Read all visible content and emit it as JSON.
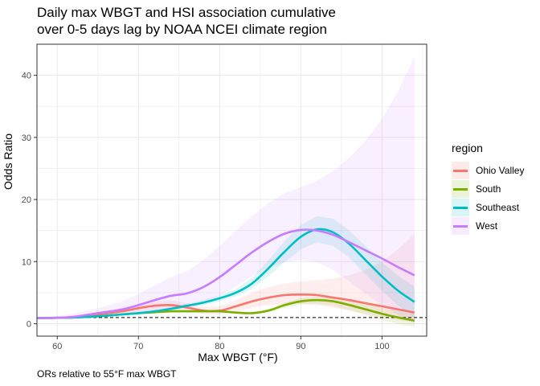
{
  "chart_data": {
    "type": "line",
    "title_lines": [
      "Daily max WBGT and HSI association cumulative",
      "over 0-5 days lag by NOAA NCEI climate region"
    ],
    "xlabel": "Max WBGT (°F)",
    "ylabel": "Odds Ratio",
    "caption": "ORs relative to 55°F max WBGT",
    "xlim": [
      57.5,
      105.5
    ],
    "ylim": [
      -2,
      45
    ],
    "x_ticks": [
      60,
      70,
      80,
      90,
      100
    ],
    "y_ticks": [
      0,
      10,
      20,
      30,
      40
    ],
    "reference_line": {
      "y": 1,
      "style": "dashed"
    },
    "grid": true,
    "legend": {
      "title": "region",
      "position": "right"
    },
    "series": [
      {
        "name": "Ohio Valley",
        "color": "#F8766D",
        "points": [
          [
            57.5,
            0.9
          ],
          [
            60,
            0.95
          ],
          [
            62,
            1.1
          ],
          [
            65,
            1.5
          ],
          [
            68,
            2.0
          ],
          [
            70,
            2.5
          ],
          [
            72,
            2.9
          ],
          [
            74,
            3.0
          ],
          [
            76,
            2.6
          ],
          [
            78,
            2.1
          ],
          [
            80,
            2.1
          ],
          [
            82,
            2.8
          ],
          [
            84,
            3.6
          ],
          [
            86,
            4.2
          ],
          [
            88,
            4.6
          ],
          [
            90,
            4.7
          ],
          [
            92,
            4.6
          ],
          [
            94,
            4.2
          ],
          [
            96,
            3.8
          ],
          [
            98,
            3.3
          ],
          [
            100,
            2.8
          ],
          [
            102,
            2.3
          ],
          [
            104,
            1.8
          ]
        ],
        "upper": [
          [
            57.5,
            1.0
          ],
          [
            60,
            1.05
          ],
          [
            62,
            1.3
          ],
          [
            65,
            1.9
          ],
          [
            68,
            2.5
          ],
          [
            70,
            3.1
          ],
          [
            72,
            3.6
          ],
          [
            74,
            3.8
          ],
          [
            76,
            3.3
          ],
          [
            78,
            2.7
          ],
          [
            80,
            2.8
          ],
          [
            82,
            3.8
          ],
          [
            84,
            5.0
          ],
          [
            86,
            5.9
          ],
          [
            88,
            6.5
          ],
          [
            90,
            6.8
          ],
          [
            92,
            7.0
          ],
          [
            94,
            7.3
          ],
          [
            96,
            7.8
          ],
          [
            98,
            8.7
          ],
          [
            100,
            10.0
          ],
          [
            102,
            12.0
          ],
          [
            104,
            14.5
          ]
        ],
        "lower": [
          [
            57.5,
            0.8
          ],
          [
            60,
            0.85
          ],
          [
            62,
            0.9
          ],
          [
            65,
            1.1
          ],
          [
            68,
            1.5
          ],
          [
            70,
            1.9
          ],
          [
            72,
            2.2
          ],
          [
            74,
            2.3
          ],
          [
            76,
            2.0
          ],
          [
            78,
            1.6
          ],
          [
            80,
            1.5
          ],
          [
            82,
            2.0
          ],
          [
            84,
            2.6
          ],
          [
            86,
            3.0
          ],
          [
            88,
            3.2
          ],
          [
            90,
            3.2
          ],
          [
            92,
            3.0
          ],
          [
            94,
            2.6
          ],
          [
            96,
            2.1
          ],
          [
            98,
            1.6
          ],
          [
            100,
            1.1
          ],
          [
            102,
            0.6
          ],
          [
            104,
            0.2
          ]
        ]
      },
      {
        "name": "South",
        "color": "#7CAE00",
        "points": [
          [
            57.5,
            0.9
          ],
          [
            60,
            0.95
          ],
          [
            62,
            1.0
          ],
          [
            65,
            1.2
          ],
          [
            68,
            1.5
          ],
          [
            70,
            1.7
          ],
          [
            72,
            1.85
          ],
          [
            74,
            2.0
          ],
          [
            76,
            2.0
          ],
          [
            78,
            2.0
          ],
          [
            80,
            2.0
          ],
          [
            82,
            1.8
          ],
          [
            84,
            1.7
          ],
          [
            86,
            2.1
          ],
          [
            88,
            3.0
          ],
          [
            90,
            3.6
          ],
          [
            92,
            3.8
          ],
          [
            94,
            3.6
          ],
          [
            96,
            3.0
          ],
          [
            98,
            2.3
          ],
          [
            100,
            1.6
          ],
          [
            102,
            1.0
          ],
          [
            104,
            0.5
          ]
        ],
        "upper": [
          [
            57.5,
            1.0
          ],
          [
            60,
            1.0
          ],
          [
            62,
            1.1
          ],
          [
            65,
            1.3
          ],
          [
            68,
            1.6
          ],
          [
            70,
            1.85
          ],
          [
            72,
            2.0
          ],
          [
            74,
            2.2
          ],
          [
            76,
            2.2
          ],
          [
            78,
            2.2
          ],
          [
            80,
            2.2
          ],
          [
            82,
            2.0
          ],
          [
            84,
            1.9
          ],
          [
            86,
            2.4
          ],
          [
            88,
            3.4
          ],
          [
            90,
            4.1
          ],
          [
            92,
            4.4
          ],
          [
            94,
            4.3
          ],
          [
            96,
            3.8
          ],
          [
            98,
            3.2
          ],
          [
            100,
            2.6
          ],
          [
            102,
            2.0
          ],
          [
            104,
            1.5
          ]
        ],
        "lower": [
          [
            57.5,
            0.8
          ],
          [
            60,
            0.9
          ],
          [
            62,
            0.95
          ],
          [
            65,
            1.1
          ],
          [
            68,
            1.4
          ],
          [
            70,
            1.55
          ],
          [
            72,
            1.7
          ],
          [
            74,
            1.8
          ],
          [
            76,
            1.8
          ],
          [
            78,
            1.8
          ],
          [
            80,
            1.8
          ],
          [
            82,
            1.6
          ],
          [
            84,
            1.5
          ],
          [
            86,
            1.8
          ],
          [
            88,
            2.6
          ],
          [
            90,
            3.1
          ],
          [
            92,
            3.2
          ],
          [
            94,
            2.9
          ],
          [
            96,
            2.2
          ],
          [
            98,
            1.4
          ],
          [
            100,
            0.6
          ],
          [
            102,
            0.0
          ],
          [
            104,
            -0.5
          ]
        ]
      },
      {
        "name": "Southeast",
        "color": "#00BFC4",
        "points": [
          [
            57.5,
            0.9
          ],
          [
            60,
            0.95
          ],
          [
            62,
            1.0
          ],
          [
            65,
            1.2
          ],
          [
            68,
            1.5
          ],
          [
            70,
            1.7
          ],
          [
            72,
            2.0
          ],
          [
            74,
            2.4
          ],
          [
            76,
            2.9
          ],
          [
            78,
            3.4
          ],
          [
            80,
            4.1
          ],
          [
            82,
            5.0
          ],
          [
            84,
            6.5
          ],
          [
            86,
            8.9
          ],
          [
            88,
            11.6
          ],
          [
            90,
            14.0
          ],
          [
            92,
            15.2
          ],
          [
            94,
            14.7
          ],
          [
            96,
            12.8
          ],
          [
            98,
            10.2
          ],
          [
            100,
            7.6
          ],
          [
            102,
            5.3
          ],
          [
            104,
            3.5
          ]
        ],
        "upper": [
          [
            57.5,
            1.0
          ],
          [
            60,
            1.0
          ],
          [
            62,
            1.1
          ],
          [
            65,
            1.3
          ],
          [
            68,
            1.6
          ],
          [
            70,
            1.85
          ],
          [
            72,
            2.2
          ],
          [
            74,
            2.7
          ],
          [
            76,
            3.2
          ],
          [
            78,
            3.8
          ],
          [
            80,
            4.6
          ],
          [
            82,
            5.6
          ],
          [
            84,
            7.4
          ],
          [
            86,
            10.2
          ],
          [
            88,
            13.3
          ],
          [
            90,
            15.9
          ],
          [
            92,
            17.3
          ],
          [
            94,
            16.9
          ],
          [
            96,
            15.0
          ],
          [
            98,
            12.5
          ],
          [
            100,
            9.9
          ],
          [
            102,
            7.7
          ],
          [
            104,
            6.0
          ]
        ],
        "lower": [
          [
            57.5,
            0.8
          ],
          [
            60,
            0.9
          ],
          [
            62,
            0.95
          ],
          [
            65,
            1.1
          ],
          [
            68,
            1.4
          ],
          [
            70,
            1.55
          ],
          [
            72,
            1.8
          ],
          [
            74,
            2.1
          ],
          [
            76,
            2.6
          ],
          [
            78,
            3.0
          ],
          [
            80,
            3.6
          ],
          [
            82,
            4.4
          ],
          [
            84,
            5.6
          ],
          [
            86,
            7.6
          ],
          [
            88,
            9.9
          ],
          [
            90,
            12.0
          ],
          [
            92,
            13.1
          ],
          [
            94,
            12.5
          ],
          [
            96,
            10.6
          ],
          [
            98,
            7.9
          ],
          [
            100,
            5.3
          ],
          [
            102,
            2.9
          ],
          [
            104,
            1.0
          ]
        ]
      },
      {
        "name": "West",
        "color": "#C77CFF",
        "points": [
          [
            57.5,
            0.9
          ],
          [
            60,
            0.95
          ],
          [
            62,
            1.1
          ],
          [
            65,
            1.7
          ],
          [
            68,
            2.3
          ],
          [
            70,
            3.0
          ],
          [
            72,
            3.8
          ],
          [
            74,
            4.5
          ],
          [
            76,
            4.9
          ],
          [
            78,
            5.9
          ],
          [
            80,
            7.5
          ],
          [
            82,
            9.5
          ],
          [
            84,
            11.5
          ],
          [
            86,
            13.2
          ],
          [
            88,
            14.5
          ],
          [
            90,
            15.1
          ],
          [
            92,
            15.0
          ],
          [
            94,
            14.3
          ],
          [
            96,
            13.1
          ],
          [
            98,
            11.8
          ],
          [
            100,
            10.5
          ],
          [
            102,
            9.1
          ],
          [
            104,
            7.8
          ]
        ],
        "upper": [
          [
            57.5,
            1.1
          ],
          [
            60,
            1.2
          ],
          [
            62,
            1.6
          ],
          [
            65,
            2.5
          ],
          [
            68,
            3.6
          ],
          [
            70,
            4.8
          ],
          [
            72,
            6.2
          ],
          [
            74,
            7.5
          ],
          [
            76,
            8.5
          ],
          [
            78,
            10.2
          ],
          [
            80,
            12.5
          ],
          [
            82,
            15.0
          ],
          [
            84,
            17.4
          ],
          [
            86,
            19.4
          ],
          [
            88,
            21.0
          ],
          [
            90,
            22.0
          ],
          [
            92,
            23.0
          ],
          [
            94,
            24.6
          ],
          [
            96,
            26.8
          ],
          [
            98,
            29.5
          ],
          [
            100,
            33.0
          ],
          [
            102,
            37.5
          ],
          [
            104,
            43.0
          ]
        ],
        "lower": [
          [
            57.5,
            0.7
          ],
          [
            60,
            0.75
          ],
          [
            62,
            0.8
          ],
          [
            65,
            1.1
          ],
          [
            68,
            1.4
          ],
          [
            70,
            1.8
          ],
          [
            72,
            2.2
          ],
          [
            74,
            2.5
          ],
          [
            76,
            2.7
          ],
          [
            78,
            3.4
          ],
          [
            80,
            4.5
          ],
          [
            82,
            6.0
          ],
          [
            84,
            7.7
          ],
          [
            86,
            9.0
          ],
          [
            88,
            9.9
          ],
          [
            90,
            10.3
          ],
          [
            92,
            9.9
          ],
          [
            94,
            8.6
          ],
          [
            96,
            6.8
          ],
          [
            98,
            4.8
          ],
          [
            100,
            3.0
          ],
          [
            102,
            1.4
          ],
          [
            104,
            0.0
          ]
        ]
      }
    ]
  }
}
